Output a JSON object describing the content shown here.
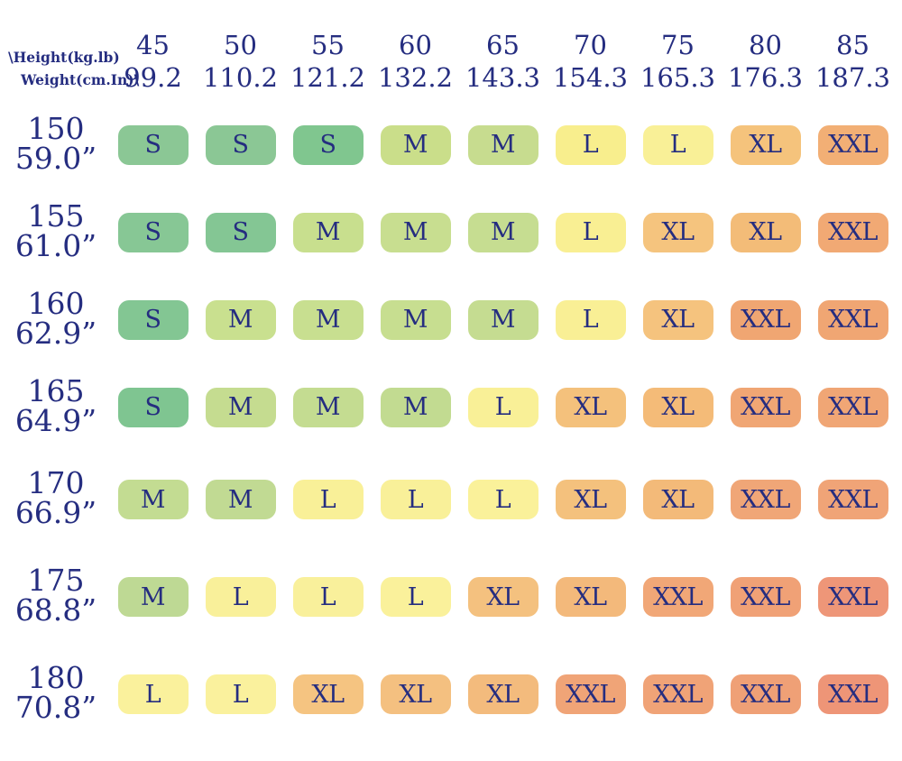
{
  "colors": {
    "text_navy": "#252d80",
    "background": "#ffffff",
    "size_s": "#8bc795",
    "size_m": "#c7de90",
    "size_l": "#f9f098",
    "size_xl": "#f5c37d",
    "size_xxl": "#f1a974",
    "size_xxl_deep": "#ee9678"
  },
  "header": {
    "corner_line1": "\\Height(kg.lb)",
    "corner_line2": "Weight(cm.In)\\",
    "columns": [
      {
        "kg": "45",
        "lb": "99.2"
      },
      {
        "kg": "50",
        "lb": "110.2"
      },
      {
        "kg": "55",
        "lb": "121.2"
      },
      {
        "kg": "60",
        "lb": "132.2"
      },
      {
        "kg": "65",
        "lb": "143.3"
      },
      {
        "kg": "70",
        "lb": "154.3"
      },
      {
        "kg": "75",
        "lb": "165.3"
      },
      {
        "kg": "80",
        "lb": "176.3"
      },
      {
        "kg": "85",
        "lb": "187.3"
      }
    ]
  },
  "grid": {
    "rows": [
      {
        "cm": "150",
        "inch": "59.0”",
        "cells": [
          {
            "label": "S",
            "color": "#8bc795"
          },
          {
            "label": "S",
            "color": "#8bc795"
          },
          {
            "label": "S",
            "color": "#80c68f"
          },
          {
            "label": "M",
            "color": "#cade8a"
          },
          {
            "label": "M",
            "color": "#c7dc8f"
          },
          {
            "label": "L",
            "color": "#f8ee8d"
          },
          {
            "label": "L",
            "color": "#f9f097"
          },
          {
            "label": "XL",
            "color": "#f5c37c"
          },
          {
            "label": "XXL",
            "color": "#f2af75"
          }
        ]
      },
      {
        "cm": "155",
        "inch": "61.0”",
        "cells": [
          {
            "label": "S",
            "color": "#87c795"
          },
          {
            "label": "S",
            "color": "#84c694"
          },
          {
            "label": "M",
            "color": "#c8df8e"
          },
          {
            "label": "M",
            "color": "#c8de90"
          },
          {
            "label": "M",
            "color": "#c6dd91"
          },
          {
            "label": "L",
            "color": "#f9ef93"
          },
          {
            "label": "XL",
            "color": "#f5c47e"
          },
          {
            "label": "XL",
            "color": "#f3bc78"
          },
          {
            "label": "XXL",
            "color": "#f1a974"
          }
        ]
      },
      {
        "cm": "160",
        "inch": "62.9”",
        "cells": [
          {
            "label": "S",
            "color": "#83c693"
          },
          {
            "label": "M",
            "color": "#c9e08f"
          },
          {
            "label": "M",
            "color": "#c8df90"
          },
          {
            "label": "M",
            "color": "#c7de90"
          },
          {
            "label": "M",
            "color": "#c5dc91"
          },
          {
            "label": "L",
            "color": "#f9ef95"
          },
          {
            "label": "XL",
            "color": "#f5c37e"
          },
          {
            "label": "XXL",
            "color": "#f0a672"
          },
          {
            "label": "XXL",
            "color": "#f0a673"
          }
        ]
      },
      {
        "cm": "165",
        "inch": "64.9”",
        "cells": [
          {
            "label": "S",
            "color": "#7fc591"
          },
          {
            "label": "M",
            "color": "#c5dc90"
          },
          {
            "label": "M",
            "color": "#c4dc91"
          },
          {
            "label": "M",
            "color": "#c2db91"
          },
          {
            "label": "L",
            "color": "#f9f097"
          },
          {
            "label": "XL",
            "color": "#f4c17c"
          },
          {
            "label": "XL",
            "color": "#f4bb78"
          },
          {
            "label": "XXL",
            "color": "#f0a674"
          },
          {
            "label": "XXL",
            "color": "#f0a675"
          }
        ]
      },
      {
        "cm": "170",
        "inch": "66.9”",
        "cells": [
          {
            "label": "M",
            "color": "#c3dc92"
          },
          {
            "label": "M",
            "color": "#c1da93"
          },
          {
            "label": "L",
            "color": "#f9f098"
          },
          {
            "label": "L",
            "color": "#f9f099"
          },
          {
            "label": "L",
            "color": "#faf19a"
          },
          {
            "label": "XL",
            "color": "#f4c17d"
          },
          {
            "label": "XL",
            "color": "#f3ba79"
          },
          {
            "label": "XXL",
            "color": "#f0a677"
          },
          {
            "label": "XXL",
            "color": "#f0a477"
          }
        ]
      },
      {
        "cm": "175",
        "inch": "68.8”",
        "cells": [
          {
            "label": "M",
            "color": "#bed994"
          },
          {
            "label": "L",
            "color": "#f9f09a"
          },
          {
            "label": "L",
            "color": "#f9f09b"
          },
          {
            "label": "L",
            "color": "#faf19b"
          },
          {
            "label": "XL",
            "color": "#f4c17f"
          },
          {
            "label": "XL",
            "color": "#f3b97b"
          },
          {
            "label": "XXL",
            "color": "#f1a777"
          },
          {
            "label": "XXL",
            "color": "#f0a176"
          },
          {
            "label": "XXL",
            "color": "#ee9678"
          }
        ]
      },
      {
        "cm": "180",
        "inch": "70.8”",
        "cells": [
          {
            "label": "L",
            "color": "#faf19c"
          },
          {
            "label": "L",
            "color": "#faf19d"
          },
          {
            "label": "XL",
            "color": "#f5c481"
          },
          {
            "label": "XL",
            "color": "#f4c080"
          },
          {
            "label": "XL",
            "color": "#f3bb7d"
          },
          {
            "label": "XXL",
            "color": "#f0a477"
          },
          {
            "label": "XXL",
            "color": "#f0a377"
          },
          {
            "label": "XXL",
            "color": "#efa076"
          },
          {
            "label": "XXL",
            "color": "#ee9577"
          }
        ]
      }
    ]
  },
  "chart_data": {
    "type": "heatmap",
    "title": "",
    "x_axis_label": "\\Height(kg.lb)",
    "y_axis_label": "Weight(cm.In)\\",
    "x_categories_kg": [
      "45",
      "50",
      "55",
      "60",
      "65",
      "70",
      "75",
      "80",
      "85"
    ],
    "x_categories_lb": [
      "99.2",
      "110.2",
      "121.2",
      "132.2",
      "143.3",
      "154.3",
      "165.3",
      "176.3",
      "187.3"
    ],
    "y_categories_cm": [
      "150",
      "155",
      "160",
      "165",
      "170",
      "175",
      "180"
    ],
    "y_categories_in": [
      "59.0”",
      "61.0”",
      "62.9”",
      "64.9”",
      "66.9”",
      "68.8”",
      "70.8”"
    ],
    "values": [
      [
        "S",
        "S",
        "S",
        "M",
        "M",
        "L",
        "L",
        "XL",
        "XXL"
      ],
      [
        "S",
        "S",
        "M",
        "M",
        "M",
        "L",
        "XL",
        "XL",
        "XXL"
      ],
      [
        "S",
        "M",
        "M",
        "M",
        "M",
        "L",
        "XL",
        "XXL",
        "XXL"
      ],
      [
        "S",
        "M",
        "M",
        "M",
        "L",
        "XL",
        "XL",
        "XXL",
        "XXL"
      ],
      [
        "M",
        "M",
        "L",
        "L",
        "L",
        "XL",
        "XL",
        "XXL",
        "XXL"
      ],
      [
        "M",
        "L",
        "L",
        "L",
        "XL",
        "XL",
        "XXL",
        "XXL",
        "XXL"
      ],
      [
        "L",
        "L",
        "XL",
        "XL",
        "XL",
        "XXL",
        "XXL",
        "XXL",
        "XXL"
      ]
    ],
    "legend": "cell fill encodes size: S=green, M=yellow-green, L=yellow, XL=light orange, XXL=orange to salmon",
    "grid": false,
    "legend_position": "none"
  }
}
